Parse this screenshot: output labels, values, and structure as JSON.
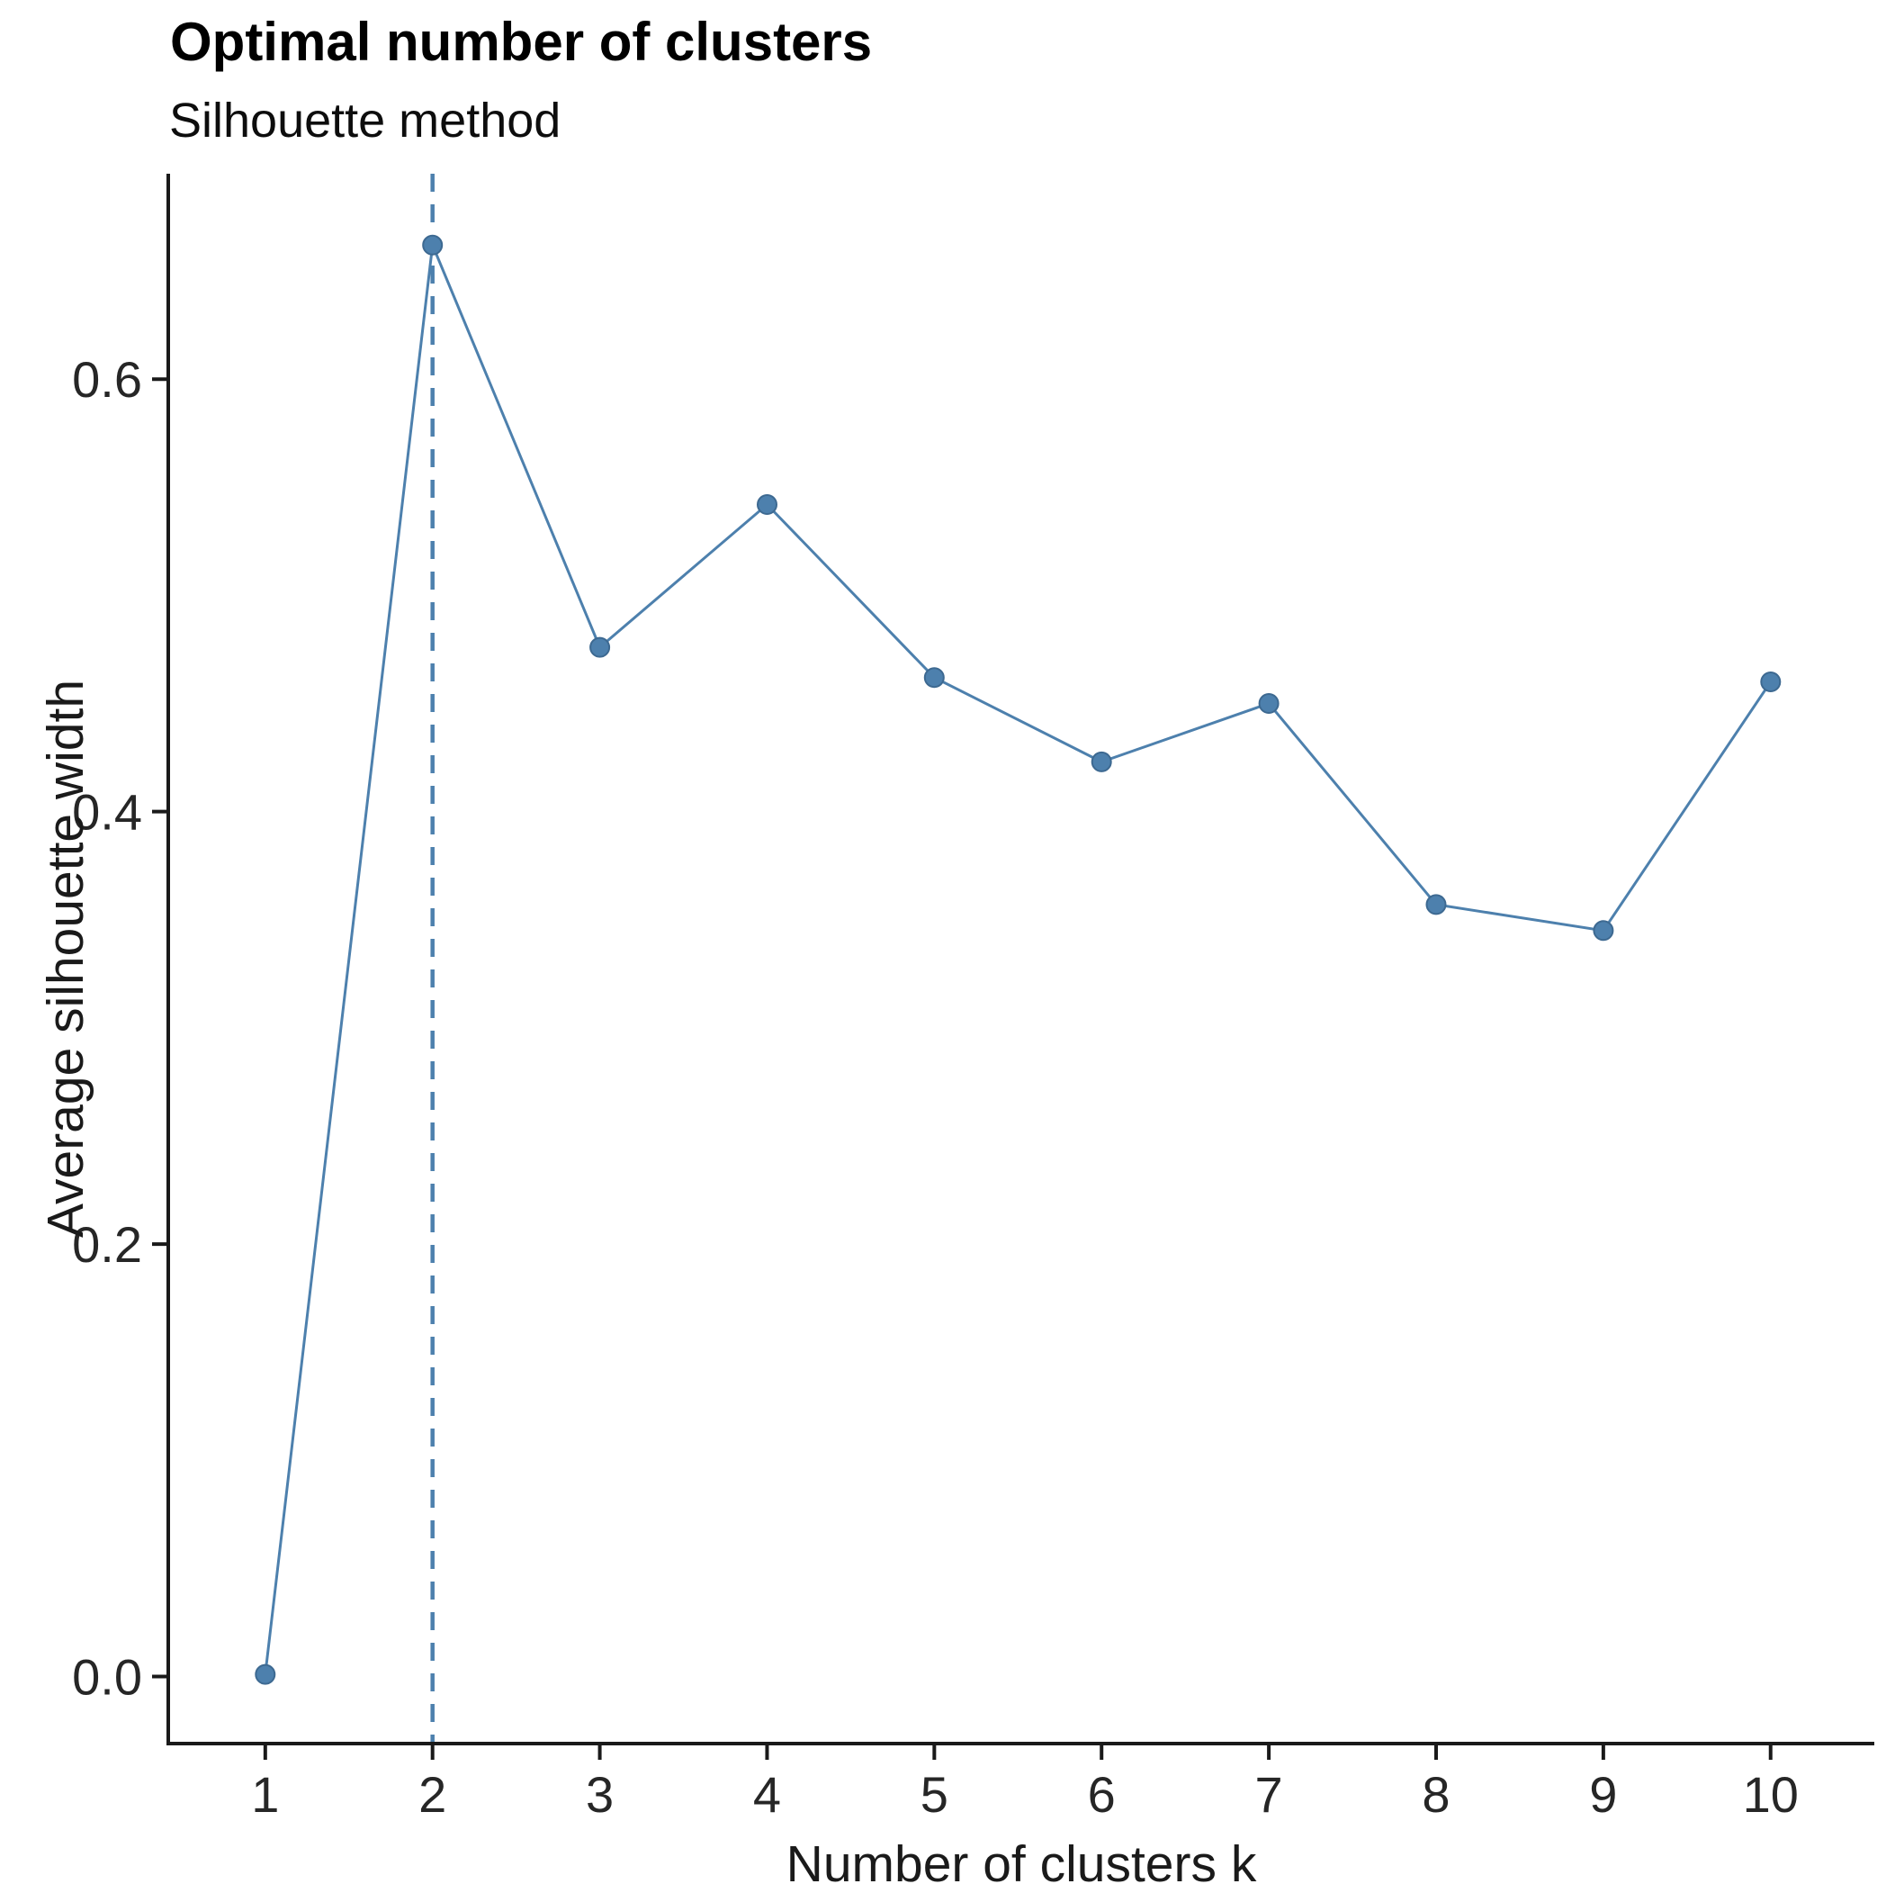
{
  "chart_data": {
    "type": "line",
    "title": "Optimal number of clusters",
    "subtitle": "Silhouette method",
    "xlabel": "Number of clusters k",
    "ylabel": "Average silhouette width",
    "x": [
      1,
      2,
      3,
      4,
      5,
      6,
      7,
      8,
      9,
      10
    ],
    "values": [
      0.001,
      0.662,
      0.476,
      0.542,
      0.462,
      0.423,
      0.45,
      0.357,
      0.345,
      0.46
    ],
    "series_name": "Average silhouette width",
    "xtick_labels": [
      "1",
      "2",
      "3",
      "4",
      "5",
      "6",
      "7",
      "8",
      "9",
      "10"
    ],
    "yticks": [
      0.0,
      0.2,
      0.4,
      0.6
    ],
    "ytick_labels": [
      "0.0",
      "0.2",
      "0.4",
      "0.6"
    ],
    "xlim": [
      0.42,
      10.62
    ],
    "ylim": [
      -0.031,
      0.695
    ],
    "optimal_k": 2,
    "vline_x": 2,
    "vline_style": "dashed",
    "grid": false,
    "legend_position": "none",
    "line_color": "#4d80ad",
    "marker_color": "#4d80ad",
    "marker_edge_color": "#3d6991",
    "vline_color": "#4d80ad",
    "axis_color": "#1a1a1a",
    "tick_text_color": "#262626",
    "background_color": "#ffffff"
  }
}
